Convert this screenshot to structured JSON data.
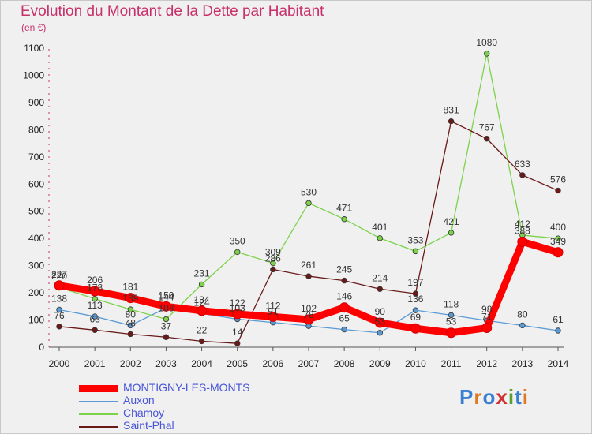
{
  "header": {
    "title": "Evolution du Montant de la Dette par Habitant",
    "unit": "(en €)"
  },
  "brand": {
    "letters": [
      "P",
      "r",
      "o",
      "x",
      "i",
      "t",
      "i"
    ],
    "colors": [
      "#3a7fd0",
      "#e07a20",
      "#3a7fd0",
      "#d03030",
      "#5aa030",
      "#3a7fd0",
      "#e07a20"
    ]
  },
  "chart_data": {
    "type": "line",
    "title": "Evolution du Montant de la Dette par Habitant",
    "ylabel": "(en €)",
    "xlabel": "",
    "x": [
      "2000",
      "2001",
      "2002",
      "2003",
      "2004",
      "2005",
      "2006",
      "2007",
      "2008",
      "2009",
      "2010",
      "2011",
      "2012",
      "2013",
      "2014"
    ],
    "ylim": [
      0,
      1100
    ],
    "yticks": [
      "0",
      "100",
      "200",
      "300",
      "400",
      "500",
      "600",
      "700",
      "800",
      "900",
      "1000",
      "1100"
    ],
    "grid": false,
    "legend_position": "bottom-left",
    "series": [
      {
        "name": "MONTIGNY-LES-MONTS",
        "color": "#ff0000",
        "values": [
          227,
          206,
          181,
          150,
          134,
          122,
          112,
          102,
          146,
          90,
          69,
          53,
          71,
          388,
          349
        ]
      },
      {
        "name": "Auxon",
        "color": "#5b9bd5",
        "values": [
          138,
          113,
          80,
          144,
          124,
          103,
          91,
          78,
          65,
          53,
          136,
          118,
          98,
          80,
          61
        ]
      },
      {
        "name": "Chamoy",
        "color": "#7cd24a",
        "values": [
          220,
          178,
          139,
          103,
          231,
          350,
          309,
          530,
          471,
          401,
          353,
          421,
          1080,
          412,
          400
        ]
      },
      {
        "name": "Saint-Phal",
        "color": "#6b1a1a",
        "values": [
          76,
          63,
          48,
          37,
          22,
          14,
          286,
          261,
          245,
          214,
          197,
          831,
          767,
          633,
          576
        ]
      }
    ]
  }
}
